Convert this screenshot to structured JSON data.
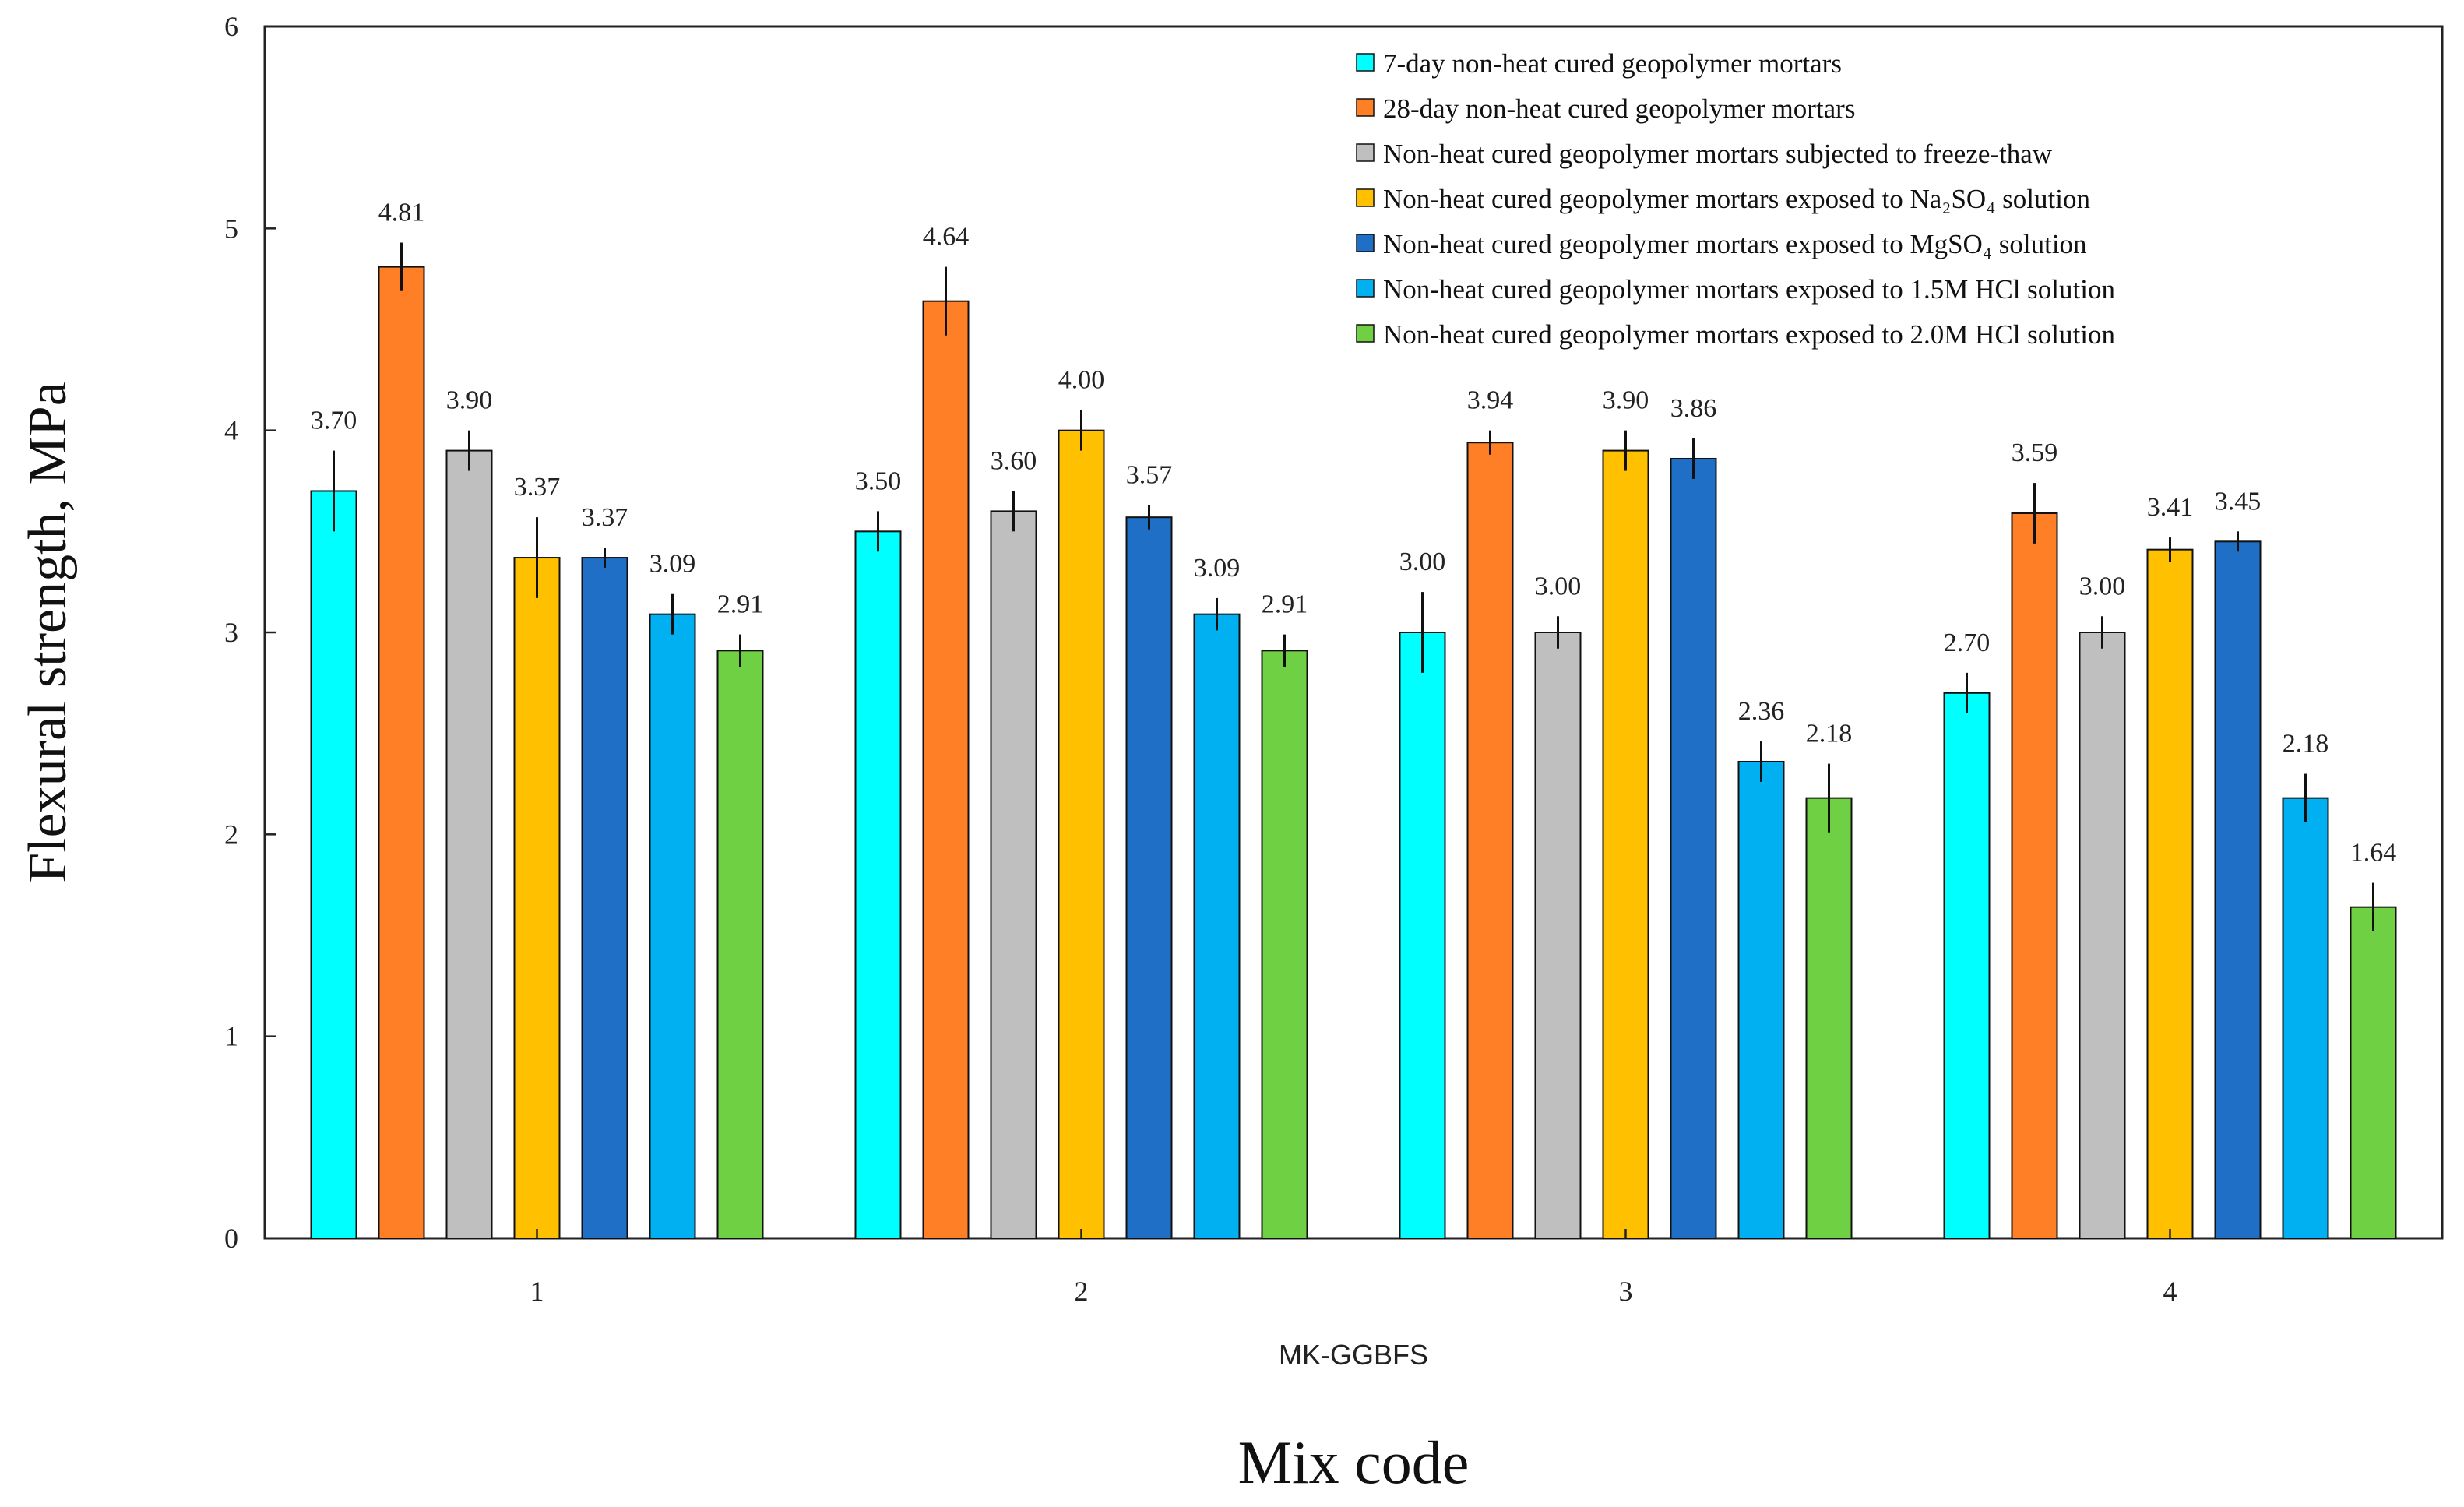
{
  "chart_data": {
    "type": "bar",
    "xlabel": "Mix code",
    "ylabel": "Flexural strength, MPa",
    "group_label": "MK-GGBFS",
    "categories": [
      "1",
      "2",
      "3",
      "4"
    ],
    "ylim": [
      0,
      6
    ],
    "yticks": [
      0,
      1,
      2,
      3,
      4,
      5,
      6
    ],
    "grid": false,
    "legend_position": "top-right",
    "value_format": "2 decimals",
    "series": [
      {
        "name": "7-day non-heat cured geopolymer mortars",
        "color": "#00ffff",
        "values": [
          3.7,
          3.5,
          3.0,
          2.7
        ],
        "labels": [
          "3.70",
          "3.50",
          "3.00",
          "2.70"
        ],
        "errors": [
          0.2,
          0.1,
          0.2,
          0.1
        ]
      },
      {
        "name": "28-day non-heat cured geopolymer mortars",
        "color": "#ff7f27",
        "values": [
          4.81,
          4.64,
          3.94,
          3.59
        ],
        "labels": [
          "4.81",
          "4.64",
          "3.94",
          "3.59"
        ],
        "errors": [
          0.12,
          0.17,
          0.06,
          0.15
        ]
      },
      {
        "name": "Non-heat cured geopolymer mortars subjected to freeze-thaw",
        "color": "#bfbfbf",
        "values": [
          3.9,
          3.6,
          3.0,
          3.0
        ],
        "labels": [
          "3.90",
          "3.60",
          "3.00",
          "3.00"
        ],
        "errors": [
          0.1,
          0.1,
          0.08,
          0.08
        ]
      },
      {
        "name": "Non-heat cured geopolymer mortars exposed to Na₂SO₄ solution",
        "color": "#ffc000",
        "values": [
          3.37,
          4.0,
          3.9,
          3.41
        ],
        "labels": [
          "3.37",
          "4.00",
          "3.90",
          "3.41"
        ],
        "errors": [
          0.2,
          0.1,
          0.1,
          0.06
        ]
      },
      {
        "name": "Non-heat cured geopolymer mortars exposed to MgSO₄ solution",
        "color": "#1f6fc6",
        "values": [
          3.37,
          3.57,
          3.86,
          3.45
        ],
        "labels": [
          "3.37",
          "3.57",
          "3.86",
          "3.45"
        ],
        "errors": [
          0.05,
          0.06,
          0.1,
          0.05
        ]
      },
      {
        "name": "Non-heat cured geopolymer mortars exposed to 1.5M HCl solution",
        "color": "#00b0f0",
        "values": [
          3.09,
          3.09,
          2.36,
          2.18
        ],
        "labels": [
          "3.09",
          "3.09",
          "2.36",
          "2.18"
        ],
        "errors": [
          0.1,
          0.08,
          0.1,
          0.12
        ]
      },
      {
        "name": "Non-heat cured geopolymer mortars exposed to 2.0M HCl solution",
        "color": "#70d044",
        "values": [
          2.91,
          2.91,
          2.18,
          1.64
        ],
        "labels": [
          "2.91",
          "2.91",
          "2.18",
          "1.64"
        ],
        "errors": [
          0.08,
          0.08,
          0.17,
          0.12
        ]
      }
    ]
  }
}
